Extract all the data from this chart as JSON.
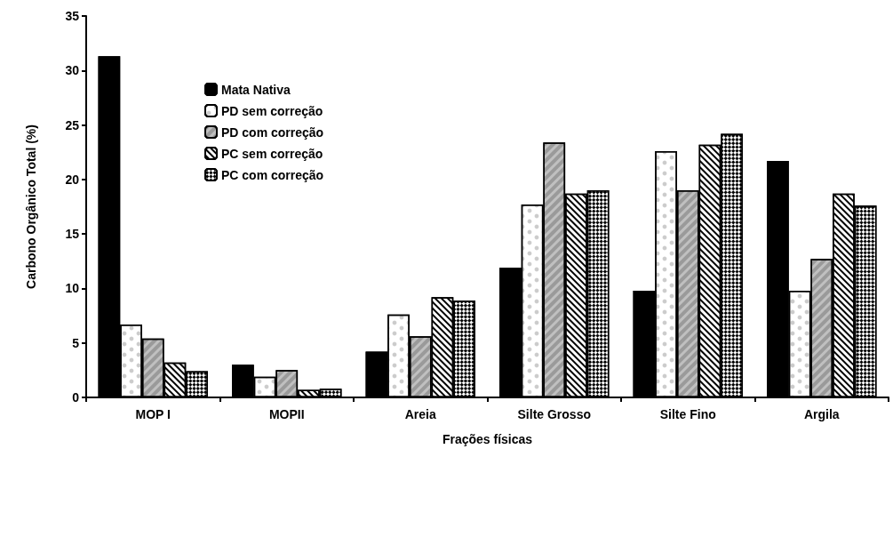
{
  "chart_data": {
    "type": "bar",
    "xlabel": "Frações físicas",
    "ylabel": "Carbono Orgânico Total (%)",
    "categories": [
      "MOP I",
      "MOPII",
      "Areia",
      "Silte Grosso",
      "Silte Fino",
      "Argila"
    ],
    "series": [
      {
        "name": "Mata Nativa",
        "color": "#000000",
        "values": [
          31.3,
          3.0,
          4.2,
          11.9,
          9.8,
          21.7
        ]
      },
      {
        "name": "PD sem correção",
        "color": "#ffffff",
        "values": [
          6.7,
          1.9,
          7.6,
          17.7,
          22.6,
          9.8
        ]
      },
      {
        "name": "PD com correção",
        "color": "#c0c0c0",
        "values": [
          5.4,
          2.5,
          5.6,
          23.4,
          19.0,
          12.7
        ]
      },
      {
        "name": "PC sem correção",
        "color": "#ffffff",
        "values": [
          3.2,
          0.7,
          9.2,
          18.7,
          23.2,
          18.7
        ]
      },
      {
        "name": "PC com correção",
        "color": "#ffffff",
        "values": [
          2.4,
          0.8,
          8.9,
          19.0,
          24.2,
          17.6
        ]
      }
    ],
    "ylim": [
      0,
      35
    ],
    "yticks": [
      0,
      5,
      10,
      15,
      20,
      25,
      30,
      35
    ],
    "grid": false,
    "legend": "top left"
  }
}
